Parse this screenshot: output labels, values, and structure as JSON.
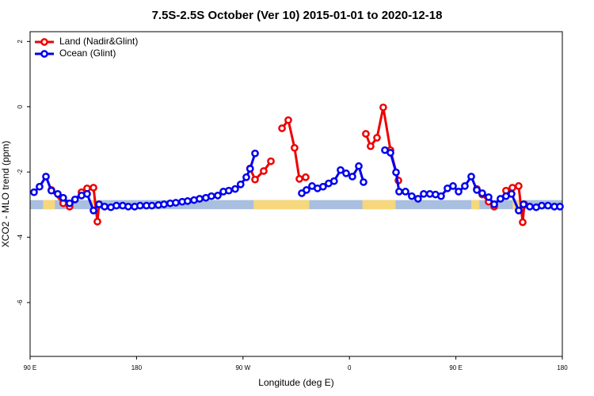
{
  "chart_data": {
    "type": "line",
    "title": "7.5S-2.5S October (Ver 10)   2015-01-01 to 2020-12-18",
    "x_label": "Longitude (deg E)",
    "y_label": "XCO2 - MLO trend (ppm)",
    "xlim": [
      90,
      540
    ],
    "ylim": [
      -7.65,
      2.3
    ],
    "xticks": [
      {
        "value": 90,
        "label": "90 E"
      },
      180,
      {
        "value": 270,
        "label": "90 W"
      },
      {
        "value": 360,
        "label": "0"
      },
      {
        "value": 450,
        "label": "90 E"
      },
      {
        "value": 540,
        "label": "180"
      }
    ],
    "yticks": [
      2,
      0,
      -2,
      -4,
      -6
    ],
    "legend": "topleft",
    "band": {
      "center": -3.0,
      "half_height": 0.14,
      "ocean_color": "#a9bfe0",
      "land_color": "#f6d77c",
      "land_ranges": [
        [
          101,
          111
        ],
        [
          141.6,
          148
        ],
        [
          279,
          326
        ],
        [
          371,
          399
        ],
        [
          463,
          470
        ],
        [
          498,
          506.5
        ]
      ]
    },
    "series": [
      {
        "name": "Land (Nadir&Glint)",
        "color": "#ee0000",
        "x": [
          108,
          118,
          123.4,
          133.5,
          138.2,
          143.6,
          146.9,
          148.3,
          null,
          276,
          280.2,
          287.5,
          293.6,
          null,
          303,
          308.3,
          313.6,
          317.7,
          323,
          null,
          373.9,
          377.9,
          383.3,
          388.6,
          394.7,
          401.4,
          null,
          467.7,
          472.3,
          477.7,
          482.4,
          null,
          492.4,
          497.8,
          503.1,
          506.5,
          507.9
        ],
        "values": [
          -2.55,
          -2.96,
          -3.06,
          -2.62,
          -2.5,
          -2.48,
          -3.52,
          -2.99,
          null,
          -1.89,
          -2.23,
          -1.97,
          -1.67,
          null,
          -0.66,
          -0.41,
          -1.26,
          -2.21,
          -2.16,
          null,
          -0.83,
          -1.21,
          -0.95,
          -0.02,
          -1.33,
          -2.26,
          null,
          -2.52,
          -2.69,
          -2.91,
          -3.06,
          null,
          -2.57,
          -2.48,
          -2.43,
          -3.54,
          -2.99
        ]
      },
      {
        "name": "Ocean (Glint)",
        "color": "#0000ee",
        "x": [
          93.3,
          98,
          103.4,
          108,
          113.4,
          118,
          123.4,
          128,
          133.5,
          138.2,
          143.6,
          148.3,
          153,
          158.3,
          163,
          168.3,
          173,
          178.4,
          183,
          188.4,
          193,
          198.5,
          203.2,
          208.5,
          213.2,
          218.6,
          223.2,
          228.6,
          233.3,
          238.6,
          243.3,
          248.7,
          253.4,
          258,
          263.4,
          268,
          272.8,
          276,
          280.2,
          null,
          319.7,
          323.7,
          328.4,
          333,
          337.7,
          342.4,
          347,
          352.5,
          357.2,
          362.5,
          367.9,
          371.9,
          null,
          390,
          394.7,
          399.4,
          402,
          407.4,
          412.7,
          418,
          422.8,
          428,
          432.8,
          437.5,
          442.9,
          447.6,
          452.3,
          457.6,
          463,
          467.7,
          472.3,
          477.7,
          482.4,
          487.7,
          492.4,
          497.1,
          503.1,
          507.2,
          512.5,
          517.9,
          522.6,
          527.9,
          533.3,
          538
        ],
        "values": [
          -2.62,
          -2.45,
          -2.14,
          -2.57,
          -2.67,
          -2.79,
          -2.96,
          -2.84,
          -2.72,
          -2.67,
          -3.18,
          -2.99,
          -3.06,
          -3.08,
          -3.03,
          -3.03,
          -3.06,
          -3.06,
          -3.03,
          -3.03,
          -3.03,
          -3.01,
          -2.99,
          -2.96,
          -2.94,
          -2.91,
          -2.89,
          -2.86,
          -2.82,
          -2.79,
          -2.74,
          -2.72,
          -2.6,
          -2.57,
          -2.52,
          -2.38,
          -2.16,
          -1.9,
          -1.43,
          null,
          -2.65,
          -2.55,
          -2.43,
          -2.5,
          -2.45,
          -2.35,
          -2.28,
          -1.94,
          -2.04,
          -2.14,
          -1.82,
          -2.31,
          null,
          -1.33,
          -1.41,
          -2.01,
          -2.6,
          -2.6,
          -2.74,
          -2.82,
          -2.67,
          -2.67,
          -2.69,
          -2.74,
          -2.5,
          -2.43,
          -2.6,
          -2.43,
          -2.14,
          -2.55,
          -2.65,
          -2.77,
          -2.99,
          -2.82,
          -2.74,
          -2.67,
          -3.18,
          -2.99,
          -3.06,
          -3.08,
          -3.03,
          -3.03,
          -3.06,
          -3.06
        ]
      }
    ]
  }
}
